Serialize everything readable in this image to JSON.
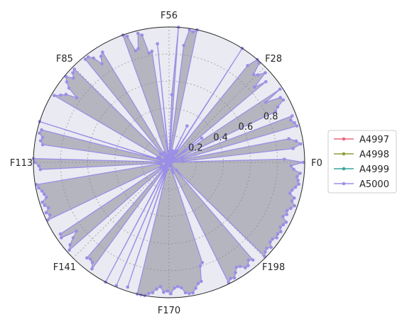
{
  "chart_data": {
    "type": "radar",
    "theta_tick_labels": [
      "F0",
      "F28",
      "F56",
      "F85",
      "F113",
      "F141",
      "F170",
      "F198"
    ],
    "radial_ticks": [
      0.2,
      0.4,
      0.6,
      0.8
    ],
    "rlim": [
      0,
      1
    ],
    "grid": true,
    "legend_position": "right",
    "num_axes": 226,
    "series": [
      {
        "name": "A4997",
        "color": "#e8687e",
        "values": []
      },
      {
        "name": "A4998",
        "color": "#8e9e32",
        "values": []
      },
      {
        "name": "A4999",
        "color": "#35a69e",
        "values": []
      },
      {
        "name": "A5000",
        "color": "#9b8ee6",
        "values": [
          0.99,
          0.85,
          0.02,
          0.1,
          0.92,
          0.98,
          0.95,
          0.9,
          0.03,
          0.1,
          0.98,
          0.97,
          0.95,
          0.97,
          0.04,
          0.05,
          0.87,
          0.9,
          0.96,
          0.95,
          0.84,
          0.98,
          0.03,
          0.3,
          0.03,
          0.93,
          0.84,
          0.97,
          0.92,
          0.9,
          0.99,
          1.0,
          0.92,
          0.05,
          0.09,
          0.1,
          1.0,
          0.02,
          0.08,
          0.06,
          0.3,
          0.05,
          0.01,
          0.07,
          0.02,
          0.04,
          0.09,
          0.05,
          0.06,
          1.0,
          0.98,
          0.99,
          0.87,
          0.03,
          1.0,
          0.5,
          0.03,
          0.02,
          0.08,
          0.06,
          0.88,
          0.04,
          0.83,
          0.82,
          0.96,
          0.98,
          0.87,
          0.86,
          0.98,
          1.0,
          0.04,
          0.02,
          0.08,
          0.05,
          0.02,
          0.05,
          0.95,
          0.93,
          0.88,
          0.95,
          0.98,
          0.98,
          0.03,
          0.08,
          0.09,
          0.98,
          0.97,
          0.94,
          0.99,
          0.96,
          0.92,
          0.83,
          0.91,
          0.94,
          0.98,
          0.08,
          0.02,
          0.04,
          0.09,
          0.03,
          0.04,
          0.03,
          1.0,
          0.05,
          0.97,
          0.98,
          0.95,
          0.96,
          0.94,
          0.06,
          0.02,
          0.06,
          1.0,
          0.99,
          0.96,
          0.95,
          0.08,
          0.07,
          0.06,
          0.99,
          0.98,
          0.96,
          0.95,
          0.94,
          0.98,
          0.97,
          0.95,
          0.98,
          0.96,
          0.99,
          0.02,
          0.06,
          0.06,
          0.07,
          0.96,
          0.97,
          0.85,
          0.9,
          0.95,
          0.98,
          0.01,
          0.05,
          0.06,
          0.03,
          0.93,
          0.92,
          0.93,
          0.97,
          0.06,
          0.02,
          0.07,
          0.05,
          1.0,
          0.05,
          0.02,
          0.99,
          0.05,
          0.03,
          0.97,
          0.07,
          0.05,
          1.0,
          1.0,
          1.0,
          0.98,
          0.97,
          0.94,
          0.92,
          0.96,
          0.95,
          0.97,
          0.93,
          0.92,
          0.93,
          0.97,
          0.98,
          0.98,
          0.95,
          0.92,
          0.91,
          0.8,
          0.78,
          0.06,
          0.08,
          0.06,
          0.03,
          0.99,
          0.97,
          0.98,
          0.95,
          0.92,
          0.93,
          0.96,
          0.96,
          0.93,
          0.95,
          0.02,
          0.08,
          0.99,
          0.97,
          0.96,
          0.98,
          0.95,
          0.95,
          0.97,
          0.96,
          0.97,
          0.95,
          0.96,
          0.97,
          0.93,
          0.95,
          0.94,
          0.96,
          0.98,
          0.95,
          0.96,
          0.92,
          0.93,
          0.95,
          0.97,
          0.96,
          0.95,
          0.97,
          0.92,
          0.9
        ]
      }
    ]
  }
}
